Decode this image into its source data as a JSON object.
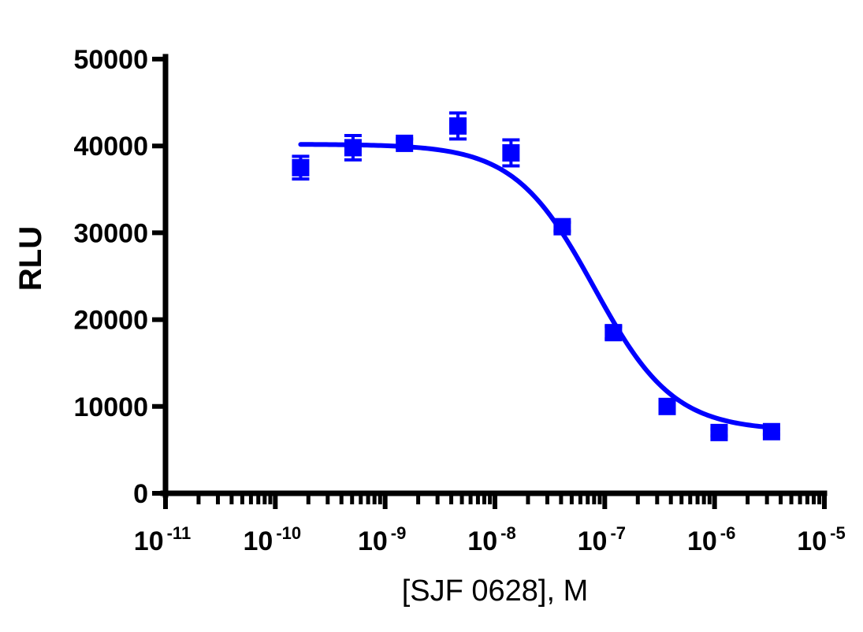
{
  "chart_data": {
    "type": "scatter",
    "xlabel": "[SJF 0628], M",
    "ylabel": "RLU",
    "x_scale": "log",
    "xlim": [
      1e-11,
      1e-05
    ],
    "ylim": [
      0,
      50000
    ],
    "x_tick_base": "10",
    "x_tick_exponents": [
      "-11",
      "-10",
      "-9",
      "-8",
      "-7",
      "-6",
      "-5"
    ],
    "y_ticks": [
      "0",
      "10000",
      "20000",
      "30000",
      "40000",
      "50000"
    ],
    "grid": false,
    "legend": "none",
    "color": "#0000ff",
    "series": [
      {
        "marker": "square",
        "x": [
          1.7e-10,
          5.1e-10,
          1.5e-09,
          4.6e-09,
          1.4e-08,
          4.1e-08,
          1.2e-07,
          3.7e-07,
          1.1e-06,
          3.3e-06
        ],
        "y": [
          37500,
          39800,
          40300,
          42300,
          39200,
          30700,
          18500,
          10000,
          7000,
          7100
        ],
        "error": [
          1300,
          1400,
          500,
          1500,
          1500,
          500,
          700,
          500,
          400,
          300
        ]
      }
    ],
    "fit": {
      "model": "four-parameter logistic",
      "top": 40200,
      "bottom": 7200,
      "ec50": 8e-08,
      "hill_slope": 1.2,
      "x_range": [
        1.7e-10,
        3.3e-06
      ]
    }
  }
}
